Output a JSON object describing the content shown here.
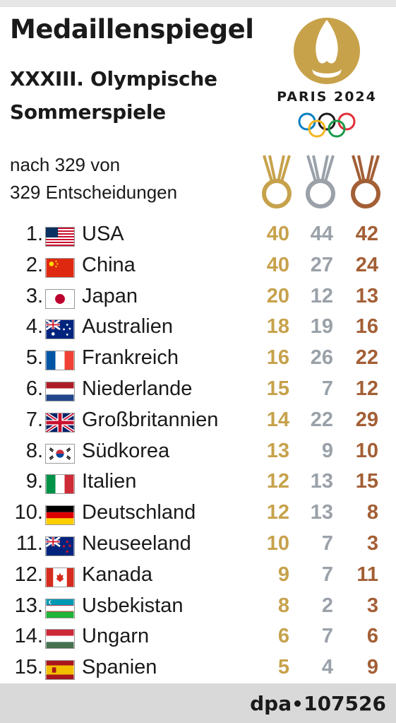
{
  "header": {
    "title": "Medaillenspiegel",
    "subtitle_line1": "XXXIII. Olympische",
    "subtitle_line2": "Sommerspiele",
    "logo_text": "PARIS 2024",
    "note_line1": "nach 329 von",
    "note_line2": "329 Entscheidungen"
  },
  "colors": {
    "gold": "#c7a24c",
    "silver": "#9aa1a9",
    "bronze": "#a35f35",
    "logo_gold": "#c8a24a"
  },
  "icons": [
    "paris-2024-logo-icon",
    "olympic-rings-icon",
    "gold-medal-icon",
    "silver-medal-icon",
    "bronze-medal-icon"
  ],
  "rows": [
    {
      "rank": "1.",
      "flag": "usa",
      "country": "USA",
      "gold": "40",
      "silver": "44",
      "bronze": "42"
    },
    {
      "rank": "2.",
      "flag": "china",
      "country": "China",
      "gold": "40",
      "silver": "27",
      "bronze": "24"
    },
    {
      "rank": "3.",
      "flag": "japan",
      "country": "Japan",
      "gold": "20",
      "silver": "12",
      "bronze": "13"
    },
    {
      "rank": "4.",
      "flag": "australia",
      "country": "Australien",
      "gold": "18",
      "silver": "19",
      "bronze": "16"
    },
    {
      "rank": "5.",
      "flag": "france",
      "country": "Frankreich",
      "gold": "16",
      "silver": "26",
      "bronze": "22"
    },
    {
      "rank": "6.",
      "flag": "netherlands",
      "country": "Niederlande",
      "gold": "15",
      "silver": "7",
      "bronze": "12"
    },
    {
      "rank": "7.",
      "flag": "uk",
      "country": "Großbritannien",
      "gold": "14",
      "silver": "22",
      "bronze": "29"
    },
    {
      "rank": "8.",
      "flag": "korea",
      "country": "Südkorea",
      "gold": "13",
      "silver": "9",
      "bronze": "10"
    },
    {
      "rank": "9.",
      "flag": "italy",
      "country": "Italien",
      "gold": "12",
      "silver": "13",
      "bronze": "15"
    },
    {
      "rank": "10.",
      "flag": "germany",
      "country": "Deutschland",
      "gold": "12",
      "silver": "13",
      "bronze": "8"
    },
    {
      "rank": "11.",
      "flag": "newzealand",
      "country": "Neuseeland",
      "gold": "10",
      "silver": "7",
      "bronze": "3"
    },
    {
      "rank": "12.",
      "flag": "canada",
      "country": "Kanada",
      "gold": "9",
      "silver": "7",
      "bronze": "11"
    },
    {
      "rank": "13.",
      "flag": "uzbekistan",
      "country": "Usbekistan",
      "gold": "8",
      "silver": "2",
      "bronze": "3"
    },
    {
      "rank": "14.",
      "flag": "hungary",
      "country": "Ungarn",
      "gold": "6",
      "silver": "7",
      "bronze": "6"
    },
    {
      "rank": "15.",
      "flag": "spain",
      "country": "Spanien",
      "gold": "5",
      "silver": "4",
      "bronze": "9"
    }
  ],
  "footer": {
    "brand_left": "dpa",
    "brand_right": "107526"
  }
}
